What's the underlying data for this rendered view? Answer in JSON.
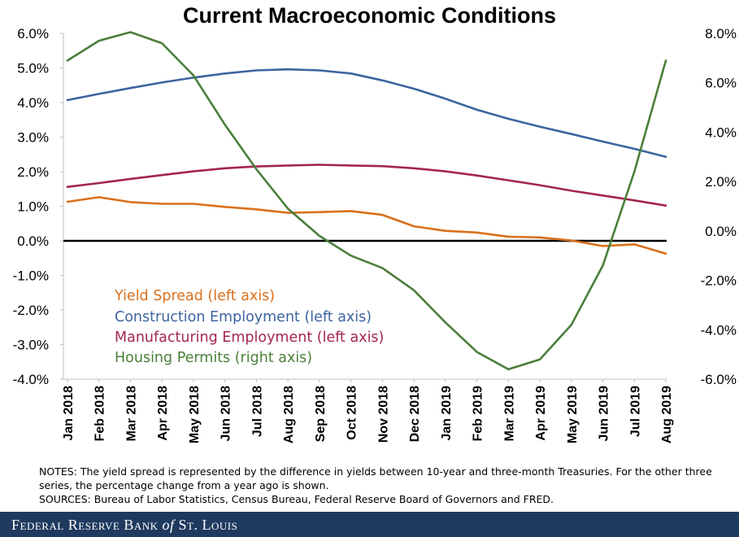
{
  "chart_data": {
    "type": "line",
    "title": "Current Macroeconomic Conditions",
    "categories": [
      "Jan 2018",
      "Feb 2018",
      "Mar 2018",
      "Apr 2018",
      "May 2018",
      "Jun 2018",
      "Jul 2018",
      "Aug 2018",
      "Sep 2018",
      "Oct 2018",
      "Nov 2018",
      "Dec 2018",
      "Jan 2019",
      "Feb 2019",
      "Mar 2019",
      "Apr 2019",
      "May 2019",
      "Jun 2019",
      "Jul 2019",
      "Aug 2019"
    ],
    "left_axis": {
      "ylim": [
        -4,
        6
      ],
      "ticks": [
        "-4.0%",
        "-3.0%",
        "-2.0%",
        "-1.0%",
        "0.0%",
        "1.0%",
        "2.0%",
        "3.0%",
        "4.0%",
        "5.0%",
        "6.0%"
      ],
      "tick_values": [
        -4,
        -3,
        -2,
        -1,
        0,
        1,
        2,
        3,
        4,
        5,
        6
      ]
    },
    "right_axis": {
      "ylim": [
        -6,
        8
      ],
      "ticks": [
        "-6.0%",
        "-4.0%",
        "-2.0%",
        "0.0%",
        "2.0%",
        "4.0%",
        "6.0%",
        "8.0%"
      ],
      "tick_values": [
        -6,
        -4,
        -2,
        0,
        2,
        4,
        6,
        8
      ]
    },
    "series": [
      {
        "name": "Yield Spread (left axis)",
        "axis": "left",
        "color": "#d9701c",
        "values": [
          1.13,
          1.26,
          1.12,
          1.07,
          1.07,
          0.98,
          0.91,
          0.81,
          0.83,
          0.86,
          0.75,
          0.42,
          0.29,
          0.24,
          0.12,
          0.1,
          0.01,
          -0.15,
          -0.1,
          -0.37
        ]
      },
      {
        "name": "Construction Employment (left axis)",
        "axis": "left",
        "color": "#3d64a0",
        "values": [
          4.07,
          4.25,
          4.42,
          4.58,
          4.72,
          4.84,
          4.93,
          4.96,
          4.93,
          4.84,
          4.64,
          4.4,
          4.11,
          3.79,
          3.53,
          3.3,
          3.09,
          2.87,
          2.66,
          2.43
        ]
      },
      {
        "name": "Manufacturing Employment (left axis)",
        "axis": "left",
        "color": "#a3264f",
        "values": [
          1.56,
          1.67,
          1.79,
          1.9,
          2.01,
          2.1,
          2.15,
          2.18,
          2.2,
          2.18,
          2.16,
          2.1,
          2.01,
          1.89,
          1.75,
          1.61,
          1.45,
          1.31,
          1.17,
          1.02
        ]
      },
      {
        "name": "Housing Permits (right axis)",
        "axis": "right",
        "color": "#4a7f3a",
        "values": [
          6.9,
          7.7,
          8.05,
          7.6,
          6.3,
          4.3,
          2.5,
          0.9,
          -0.2,
          -1.0,
          -1.5,
          -2.4,
          -3.7,
          -4.9,
          -5.6,
          -5.2,
          -3.8,
          -1.4,
          2.4,
          6.9
        ]
      }
    ]
  },
  "legend": [
    "Yield Spread (left axis)",
    "Construction Employment (left axis)",
    "Manufacturing Employment (left axis)",
    "Housing Permits (right axis)"
  ],
  "notes": {
    "line1": "NOTES: The yield spread is represented by the difference in yields between 10-year and three-month  Treasuries. For the other three series, the percentage change from a year ago is shown.",
    "line2": "SOURCES: Bureau of Labor Statistics, Census Bureau, Federal Reserve Board of Governors  and FRED."
  },
  "footer": {
    "main": "Federal Reserve Bank",
    "of": "of",
    "city": "St. Louis"
  },
  "colors": {
    "zero_line": "#000000",
    "axis": "#bfbfbf",
    "footer_bg": "#1f3a5f"
  }
}
